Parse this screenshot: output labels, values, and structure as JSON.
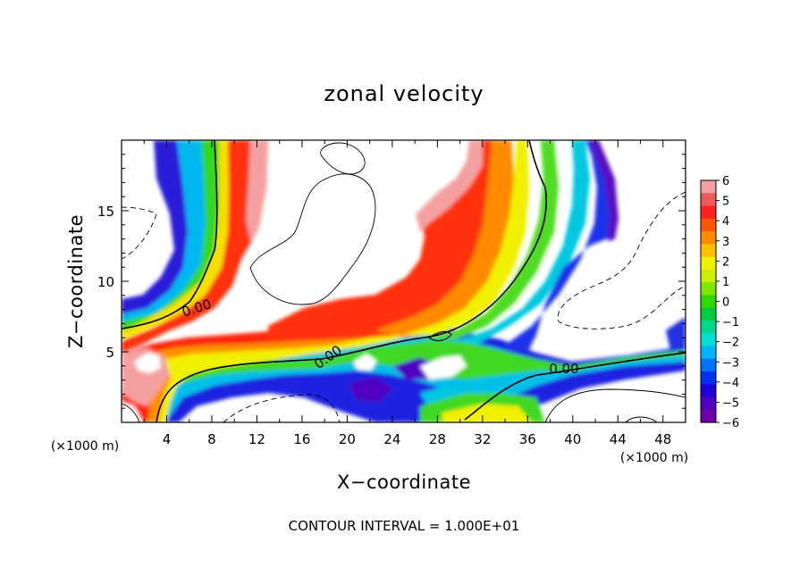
{
  "chart_data": {
    "type": "heatmap",
    "title": "zonal velocity",
    "xlabel": "X−coordinate",
    "ylabel": "Z−coordinate",
    "x_unit": "(×1000 m)",
    "y_unit": "(×1000 m)",
    "xlim": [
      0,
      50
    ],
    "ylim": [
      0,
      20
    ],
    "x_ticks": [
      4,
      8,
      12,
      16,
      20,
      24,
      28,
      32,
      36,
      40,
      44,
      48
    ],
    "y_ticks": [
      5,
      10,
      15
    ],
    "colorbar": {
      "ticks": [
        "6",
        "5",
        "4",
        "3",
        "2",
        "1",
        "0",
        "−1",
        "−2",
        "−3",
        "−4",
        "−5",
        "−6"
      ],
      "range": [
        -6,
        6
      ],
      "colors": [
        "#f4a0a0",
        "#ee5a5a",
        "#ff2020",
        "#ff5500",
        "#ff8c00",
        "#ffc000",
        "#f0f000",
        "#c8f000",
        "#80e800",
        "#30d800",
        "#00cc40",
        "#00d890",
        "#00e0d0",
        "#00b4ff",
        "#0070ff",
        "#0030f0",
        "#2000d8",
        "#5000c0",
        "#7000a8"
      ]
    },
    "contour_labels": [
      {
        "text": "0.00",
        "x": 6.6,
        "z": 8.0
      },
      {
        "text": "0.00",
        "x": 18.5,
        "z": 4.6
      },
      {
        "text": "0.00",
        "x": 39.3,
        "z": 3.7
      }
    ],
    "footer": "CONTOUR INTERVAL = 1.000E+01",
    "shading_note": "filled color bands between ±6 with white outside the range"
  }
}
